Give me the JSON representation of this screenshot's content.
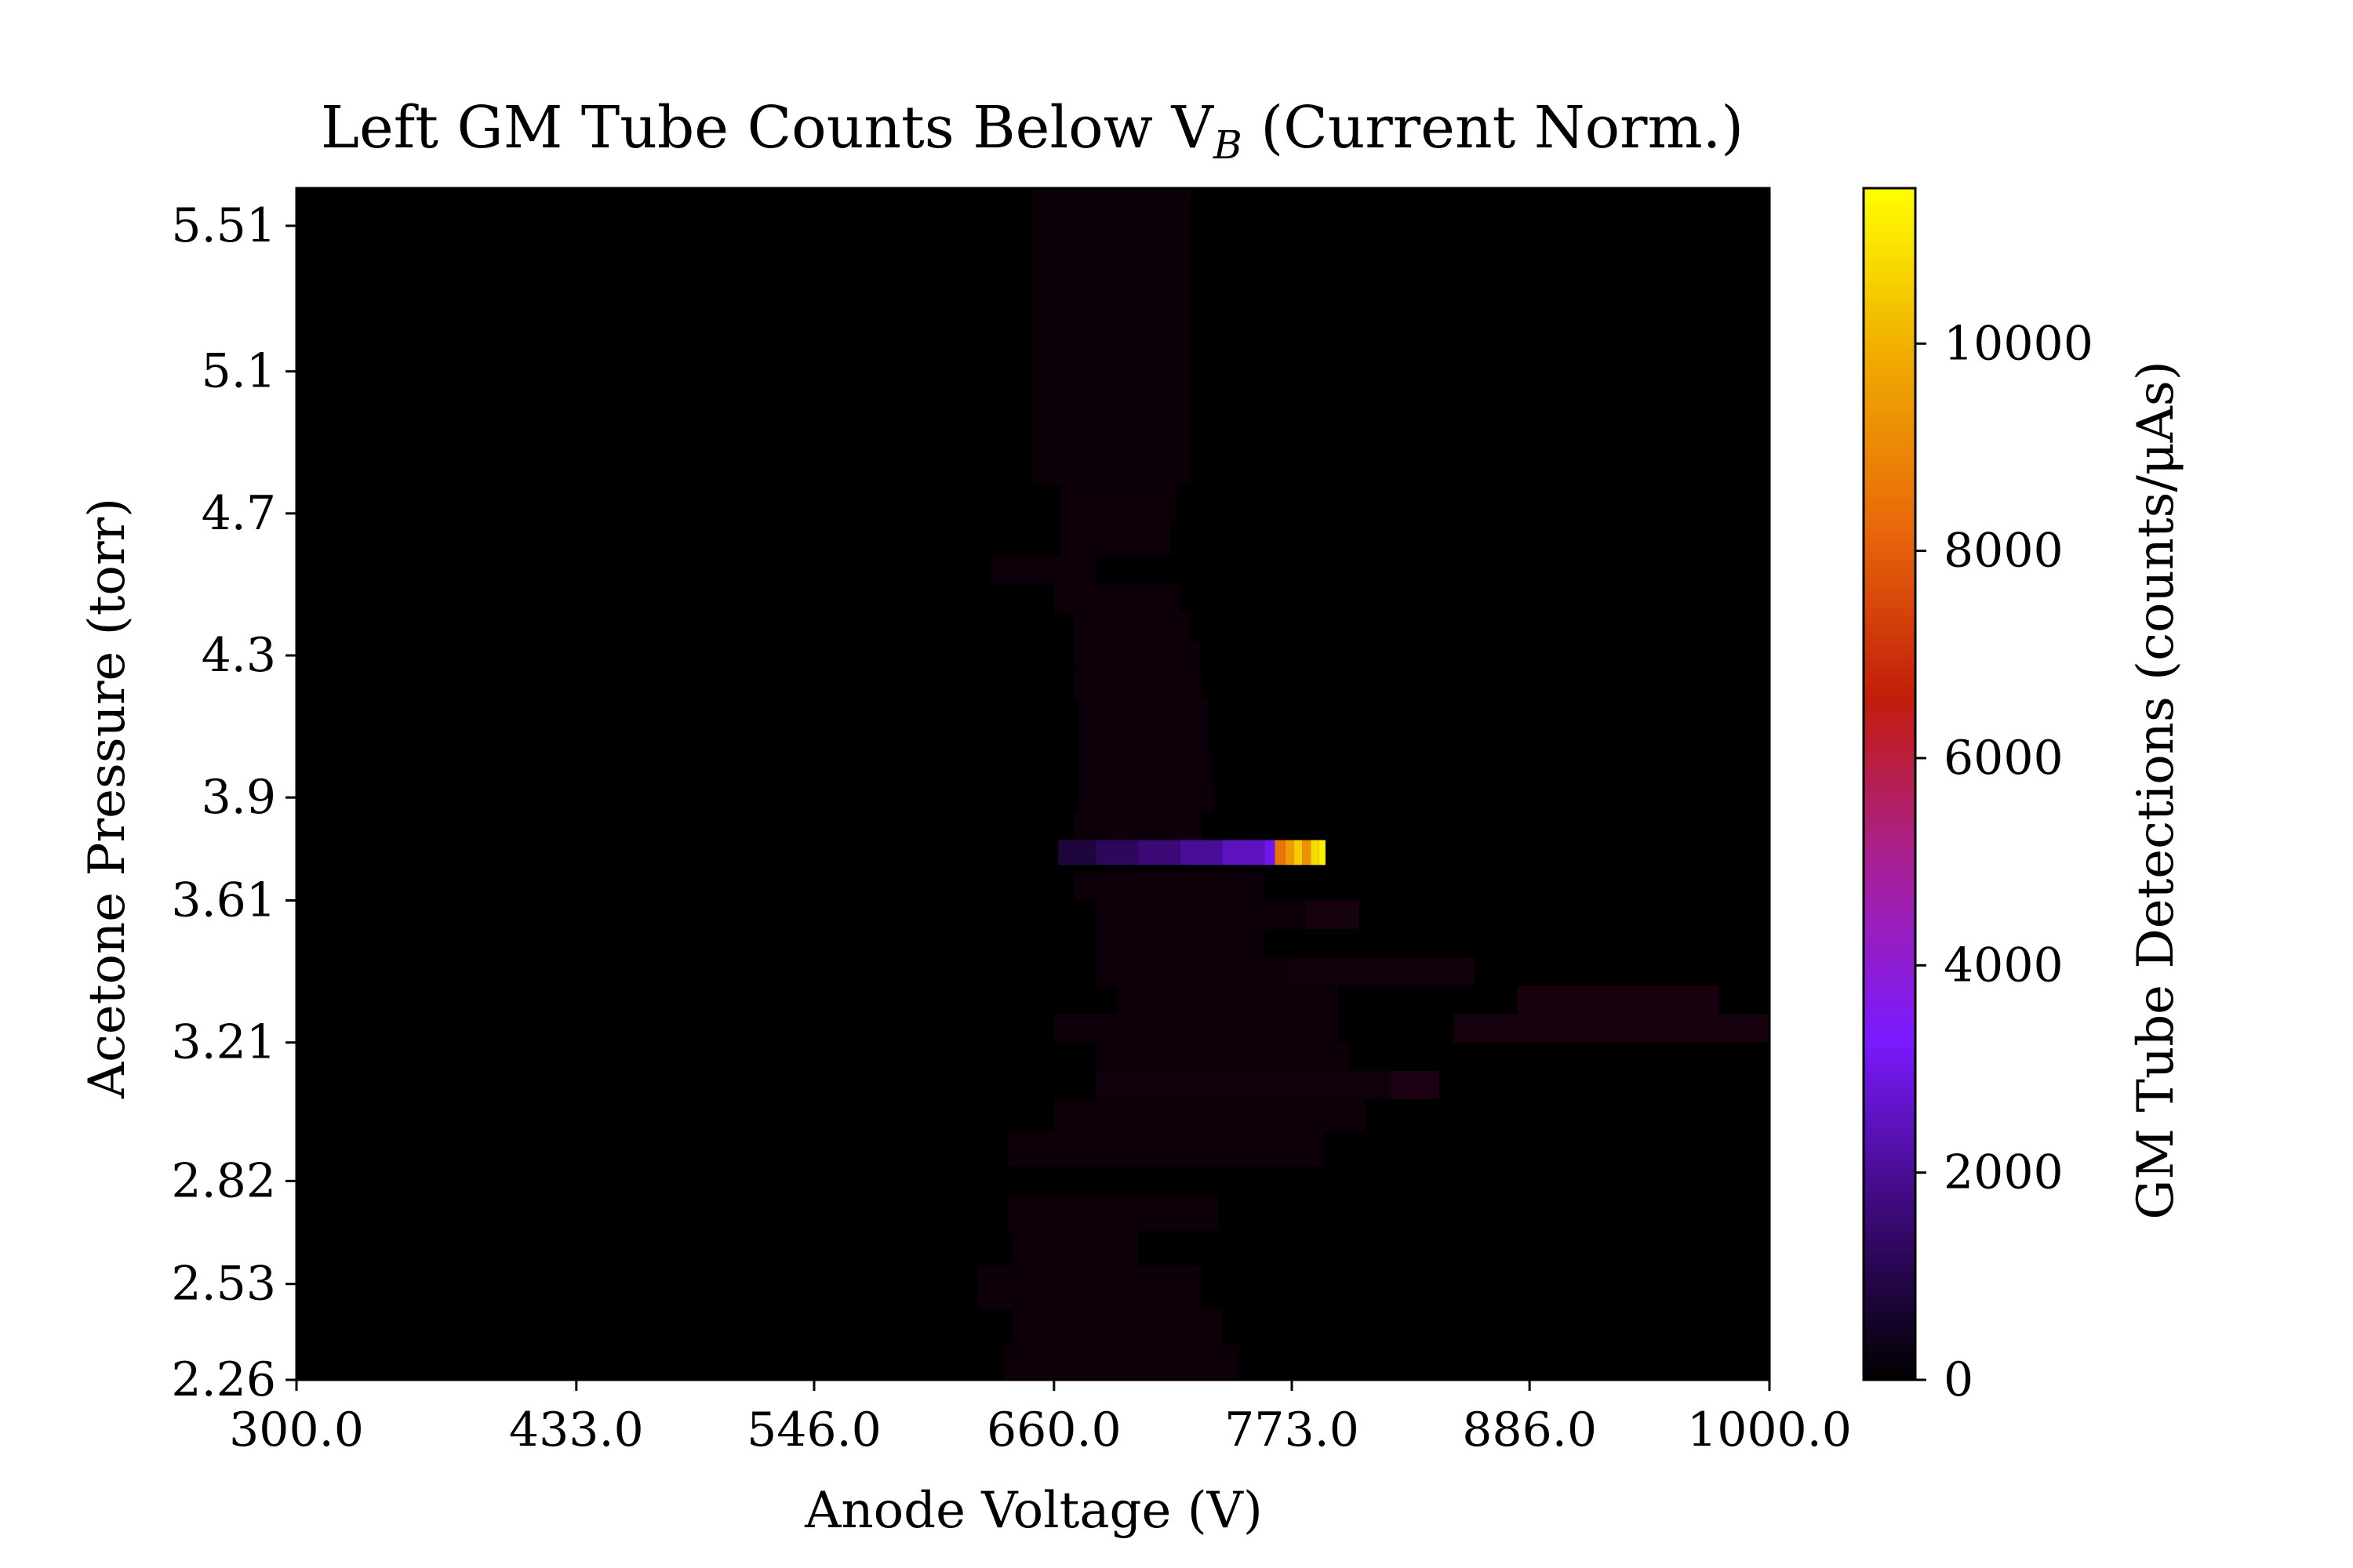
{
  "chart_data": {
    "type": "heatmap",
    "title": "Left GM Tube Counts Below V",
    "title_subscript": "B",
    "title_suffix": " (Current Norm.)",
    "xlabel": "Anode Voltage (V)",
    "ylabel": "Acetone Pressure (torr)",
    "x_ticks": [
      "300.0",
      "433.0",
      "546.0",
      "660.0",
      "773.0",
      "886.0",
      "1000.0"
    ],
    "x_tick_values": [
      300,
      433,
      546,
      660,
      773,
      886,
      1000
    ],
    "xlim": [
      300,
      1000
    ],
    "y_ticks": [
      "5.51",
      "5.1",
      "4.7",
      "4.3",
      "3.9",
      "3.61",
      "3.21",
      "2.82",
      "2.53",
      "2.26"
    ],
    "y_tick_values": [
      5.51,
      5.1,
      4.7,
      4.3,
      3.9,
      3.61,
      3.21,
      2.82,
      2.53,
      2.26
    ],
    "ylim": [
      2.26,
      5.61
    ],
    "colorbar": {
      "label": "GM Tube Detections (counts/μAs)",
      "ticks": [
        "0",
        "2000",
        "4000",
        "6000",
        "8000",
        "10000"
      ],
      "tick_values": [
        0,
        2000,
        4000,
        6000,
        8000,
        10000
      ],
      "range": [
        0,
        11500
      ],
      "colormap": "gnuplot",
      "stops": [
        "#000000",
        "#3d0a7a",
        "#7a1aff",
        "#a8209a",
        "#c21d0b",
        "#e8680a",
        "#f0aa00",
        "#ffff00"
      ]
    },
    "background": "#000000",
    "regions": [
      {
        "p": [
          2.26,
          2.36
        ],
        "x": [
          636,
          748
        ],
        "v": 40
      },
      {
        "p": [
          2.36,
          2.46
        ],
        "x": [
          640,
          740
        ],
        "v": 40
      },
      {
        "p": [
          2.46,
          2.58
        ],
        "x": [
          624,
          730
        ],
        "v": 40
      },
      {
        "p": [
          2.58,
          2.68
        ],
        "x": [
          640,
          700
        ],
        "v": 40
      },
      {
        "p": [
          2.68,
          2.78
        ],
        "x": [
          638,
          738
        ],
        "v": 40
      },
      {
        "p": [
          2.86,
          2.96
        ],
        "x": [
          638,
          788
        ],
        "v": 40
      },
      {
        "p": [
          2.96,
          3.05
        ],
        "x": [
          660,
          808
        ],
        "v": 40
      },
      {
        "p": [
          3.05,
          3.13
        ],
        "x": [
          680,
          820
        ],
        "v": 60
      },
      {
        "p": [
          3.05,
          3.13
        ],
        "x": [
          820,
          843
        ],
        "v": 180
      },
      {
        "p": [
          3.13,
          3.21
        ],
        "x": [
          680,
          800
        ],
        "v": 40
      },
      {
        "p": [
          3.21,
          3.29
        ],
        "x": [
          660,
          795
        ],
        "v": 40
      },
      {
        "p": [
          3.21,
          3.29
        ],
        "x": [
          850,
          1000
        ],
        "v": 120
      },
      {
        "p": [
          3.29,
          3.37
        ],
        "x": [
          690,
          795
        ],
        "v": 40
      },
      {
        "p": [
          3.29,
          3.37
        ],
        "x": [
          880,
          976
        ],
        "v": 120
      },
      {
        "p": [
          3.37,
          3.45
        ],
        "x": [
          680,
          770
        ],
        "v": 40
      },
      {
        "p": [
          3.37,
          3.45
        ],
        "x": [
          770,
          860
        ],
        "v": 60
      },
      {
        "p": [
          3.45,
          3.53
        ],
        "x": [
          680,
          760
        ],
        "v": 40
      },
      {
        "p": [
          3.53,
          3.61
        ],
        "x": [
          680,
          780
        ],
        "v": 40
      },
      {
        "p": [
          3.53,
          3.61
        ],
        "x": [
          780,
          805
        ],
        "v": 120
      },
      {
        "p": [
          3.61,
          3.69
        ],
        "x": [
          670,
          760
        ],
        "v": 40
      },
      {
        "p": [
          3.78,
          3.86
        ],
        "x": [
          670,
          730
        ],
        "v": 40
      },
      {
        "p": [
          3.86,
          3.94
        ],
        "x": [
          672,
          736
        ],
        "v": 40
      },
      {
        "p": [
          3.94,
          4.02
        ],
        "x": [
          672,
          735
        ],
        "v": 40
      },
      {
        "p": [
          4.02,
          4.1
        ],
        "x": [
          672,
          733
        ],
        "v": 40
      },
      {
        "p": [
          4.1,
          4.18
        ],
        "x": [
          672,
          733
        ],
        "v": 40
      },
      {
        "p": [
          4.18,
          4.26
        ],
        "x": [
          670,
          730
        ],
        "v": 40
      },
      {
        "p": [
          4.26,
          4.34
        ],
        "x": [
          670,
          729
        ],
        "v": 40
      },
      {
        "p": [
          4.34,
          4.42
        ],
        "x": [
          670,
          725
        ],
        "v": 40
      },
      {
        "p": [
          4.42,
          4.5
        ],
        "x": [
          660,
          720
        ],
        "v": 40
      },
      {
        "p": [
          4.5,
          4.58
        ],
        "x": [
          630,
          680
        ],
        "v": 40
      },
      {
        "p": [
          4.58,
          4.68
        ],
        "x": [
          663,
          715
        ],
        "v": 40
      },
      {
        "p": [
          4.68,
          4.78
        ],
        "x": [
          663,
          718
        ],
        "v": 40
      },
      {
        "p": [
          4.78,
          5.61
        ],
        "x": [
          650,
          725
        ],
        "v": 15
      }
    ],
    "bright_band": {
      "p": [
        3.71,
        3.78
      ],
      "cells": [
        {
          "x": [
            662,
            680
          ],
          "v": 800
        },
        {
          "x": [
            680,
            700
          ],
          "v": 1200
        },
        {
          "x": [
            700,
            720
          ],
          "v": 1600
        },
        {
          "x": [
            720,
            740
          ],
          "v": 2000
        },
        {
          "x": [
            740,
            760
          ],
          "v": 2500
        },
        {
          "x": [
            760,
            765
          ],
          "v": 3000
        },
        {
          "x": [
            765,
            770
          ],
          "v": 8500
        },
        {
          "x": [
            770,
            774
          ],
          "v": 9500
        },
        {
          "x": [
            774,
            778
          ],
          "v": 10500
        },
        {
          "x": [
            778,
            782
          ],
          "v": 9200
        },
        {
          "x": [
            782,
            786
          ],
          "v": 10800
        },
        {
          "x": [
            786,
            789
          ],
          "v": 11200
        }
      ]
    }
  }
}
